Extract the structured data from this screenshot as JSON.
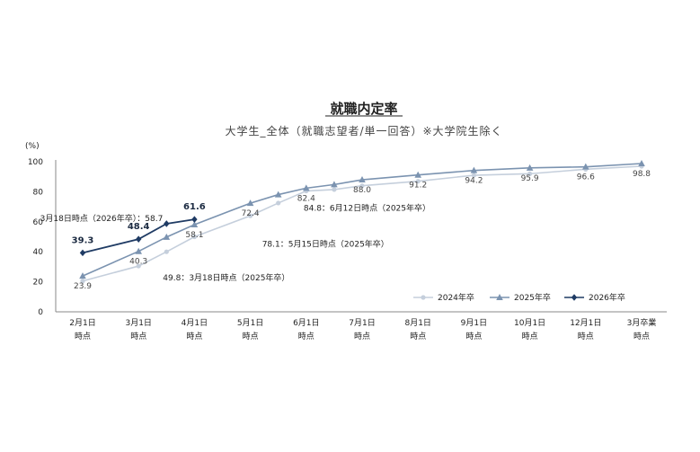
{
  "chart_data": {
    "type": "line",
    "title": "就職内定率",
    "subtitle": "大学生_全体（就職志望者/単一回答）※大学院生除く",
    "ylabel": "(%)",
    "ylim": [
      0,
      100
    ],
    "yticks": [
      0,
      20,
      40,
      60,
      80,
      100
    ],
    "categories": [
      [
        "2月1日",
        "時点"
      ],
      [
        "3月1日",
        "時点"
      ],
      [
        "4月1日",
        "時点"
      ],
      [
        "5月1日",
        "時点"
      ],
      [
        "6月1日",
        "時点"
      ],
      [
        "7月1日",
        "時点"
      ],
      [
        "8月1日",
        "時点"
      ],
      [
        "9月1日",
        "時点"
      ],
      [
        "10月1日",
        "時点"
      ],
      [
        "12月1日",
        "時点"
      ],
      [
        "3月卒業",
        "時点"
      ]
    ],
    "series": [
      {
        "name": "2024年卒",
        "color": "#c5cfdc",
        "marker": "circle",
        "points": [
          {
            "x": 0,
            "y": 20.5
          },
          {
            "x": 1,
            "y": 30.5
          },
          {
            "x": 1.5,
            "y": 40
          },
          {
            "x": 2,
            "y": 50
          },
          {
            "x": 3,
            "y": 64
          },
          {
            "x": 3.5,
            "y": 72.5
          },
          {
            "x": 4,
            "y": 80.5
          },
          {
            "x": 4.5,
            "y": 81.5
          },
          {
            "x": 5,
            "y": 84
          },
          {
            "x": 6,
            "y": 87
          },
          {
            "x": 7,
            "y": 91
          },
          {
            "x": 8,
            "y": 92
          },
          {
            "x": 9,
            "y": 95
          },
          {
            "x": 10,
            "y": 97
          }
        ]
      },
      {
        "name": "2025年卒",
        "color": "#7b93b0",
        "marker": "triangle",
        "points": [
          {
            "x": 0,
            "y": 23.9
          },
          {
            "x": 1,
            "y": 40.3
          },
          {
            "x": 1.5,
            "y": 49.8
          },
          {
            "x": 2,
            "y": 58.1
          },
          {
            "x": 3,
            "y": 72.4
          },
          {
            "x": 3.5,
            "y": 78.1
          },
          {
            "x": 4,
            "y": 82.4
          },
          {
            "x": 4.5,
            "y": 84.8
          },
          {
            "x": 5,
            "y": 88.0
          },
          {
            "x": 6,
            "y": 91.2
          },
          {
            "x": 7,
            "y": 94.2
          },
          {
            "x": 8,
            "y": 95.9
          },
          {
            "x": 9,
            "y": 96.6
          },
          {
            "x": 10,
            "y": 98.8
          }
        ]
      },
      {
        "name": "2026年卒",
        "color": "#1f3b64",
        "marker": "diamond",
        "points": [
          {
            "x": 0,
            "y": 39.3
          },
          {
            "x": 1,
            "y": 48.4
          },
          {
            "x": 1.5,
            "y": 58.7
          },
          {
            "x": 2,
            "y": 61.6
          }
        ]
      }
    ],
    "data_labels": [
      {
        "text": "23.9",
        "x": 0,
        "y": 23.9,
        "series": "2025年卒",
        "pos": "below"
      },
      {
        "text": "40.3",
        "x": 1,
        "y": 40.3,
        "series": "2025年卒",
        "pos": "below"
      },
      {
        "text": "58.1",
        "x": 2,
        "y": 58.1,
        "series": "2025年卒",
        "pos": "below"
      },
      {
        "text": "72.4",
        "x": 3,
        "y": 72.4,
        "series": "2025年卒",
        "pos": "below"
      },
      {
        "text": "82.4",
        "x": 4,
        "y": 82.4,
        "series": "2025年卒",
        "pos": "below"
      },
      {
        "text": "88.0",
        "x": 5,
        "y": 88.0,
        "series": "2025年卒",
        "pos": "below"
      },
      {
        "text": "91.2",
        "x": 6,
        "y": 91.2,
        "series": "2025年卒",
        "pos": "below"
      },
      {
        "text": "94.2",
        "x": 7,
        "y": 94.2,
        "series": "2025年卒",
        "pos": "below"
      },
      {
        "text": "95.9",
        "x": 8,
        "y": 95.9,
        "series": "2025年卒",
        "pos": "below"
      },
      {
        "text": "96.6",
        "x": 9,
        "y": 96.6,
        "series": "2025年卒",
        "pos": "below"
      },
      {
        "text": "98.8",
        "x": 10,
        "y": 98.8,
        "series": "2025年卒",
        "pos": "below"
      },
      {
        "text": "39.3",
        "x": 0,
        "y": 39.3,
        "series": "2026年卒",
        "pos": "above"
      },
      {
        "text": "48.4",
        "x": 1,
        "y": 48.4,
        "series": "2026年卒",
        "pos": "above"
      },
      {
        "text": "61.6",
        "x": 2,
        "y": 61.6,
        "series": "2026年卒",
        "pos": "above"
      }
    ],
    "annotations": [
      {
        "text": "3月18日時点（2026年卒）：58.7",
        "x": 1.5,
        "y": 58.7,
        "pos": "left"
      },
      {
        "text": "49.8：3月18日時点（2025年卒）",
        "x": 1.5,
        "y": 49.8,
        "pos": "below-right"
      },
      {
        "text": "78.1：5月15日時点（2025年卒）",
        "x": 3.5,
        "y": 78.1,
        "pos": "below"
      },
      {
        "text": "84.8：6月12日時点（2025年卒）",
        "x": 4.5,
        "y": 84.8,
        "pos": "below-right"
      }
    ],
    "legend": {
      "placement": "bottom-right",
      "items": [
        "2024年卒",
        "2025年卒",
        "2026年卒"
      ]
    },
    "grid": false
  }
}
